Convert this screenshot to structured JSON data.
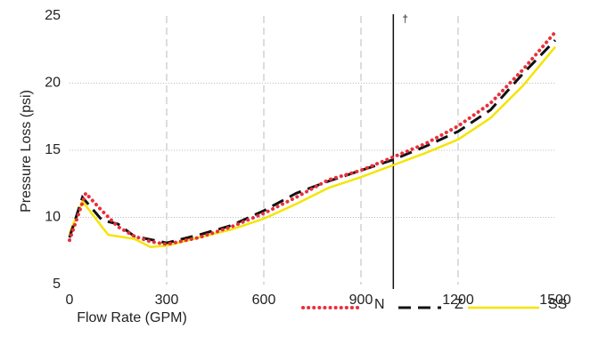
{
  "chart_data": {
    "type": "line",
    "xlabel": "Flow Rate (GPM)",
    "ylabel": "Pressure Loss (psi)",
    "xlim": [
      0,
      1500
    ],
    "xticks": [
      0,
      300,
      600,
      900,
      1200,
      1500
    ],
    "ylim": [
      5,
      25
    ],
    "yticks": [
      5,
      10,
      15,
      20,
      25
    ],
    "grid": true,
    "legend": "bottom",
    "annotation": {
      "x": 1000,
      "text": "†"
    },
    "series": [
      {
        "name": "N",
        "color": "#e8303a",
        "style": "dotted",
        "x": [
          0,
          50,
          100,
          150,
          200,
          250,
          300,
          400,
          500,
          600,
          700,
          800,
          900,
          1000,
          1100,
          1200,
          1300,
          1400,
          1500
        ],
        "values": [
          8.3,
          11.8,
          10.5,
          9.3,
          8.6,
          8.2,
          8.0,
          8.5,
          9.3,
          10.3,
          11.5,
          12.8,
          13.5,
          14.5,
          15.5,
          16.8,
          18.5,
          21.0,
          23.8
        ]
      },
      {
        "name": "Z",
        "color": "#111111",
        "style": "dashed",
        "x": [
          0,
          40,
          100,
          150,
          200,
          300,
          400,
          500,
          600,
          700,
          800,
          900,
          1000,
          1100,
          1200,
          1300,
          1400,
          1500
        ],
        "values": [
          8.5,
          11.5,
          9.8,
          9.5,
          8.6,
          8.1,
          8.7,
          9.4,
          10.5,
          11.8,
          12.7,
          13.5,
          14.3,
          15.3,
          16.4,
          18.0,
          20.7,
          23.2
        ]
      },
      {
        "name": "SS",
        "color": "#f5e400",
        "style": "solid",
        "x": [
          0,
          40,
          100,
          120,
          200,
          250,
          300,
          400,
          500,
          600,
          700,
          800,
          900,
          1000,
          1100,
          1200,
          1300,
          1400,
          1500
        ],
        "values": [
          8.8,
          11.2,
          9.3,
          8.7,
          8.4,
          7.8,
          7.9,
          8.5,
          9.1,
          9.9,
          11.0,
          12.2,
          13.0,
          13.9,
          14.8,
          15.8,
          17.4,
          19.8,
          22.7
        ]
      }
    ]
  }
}
